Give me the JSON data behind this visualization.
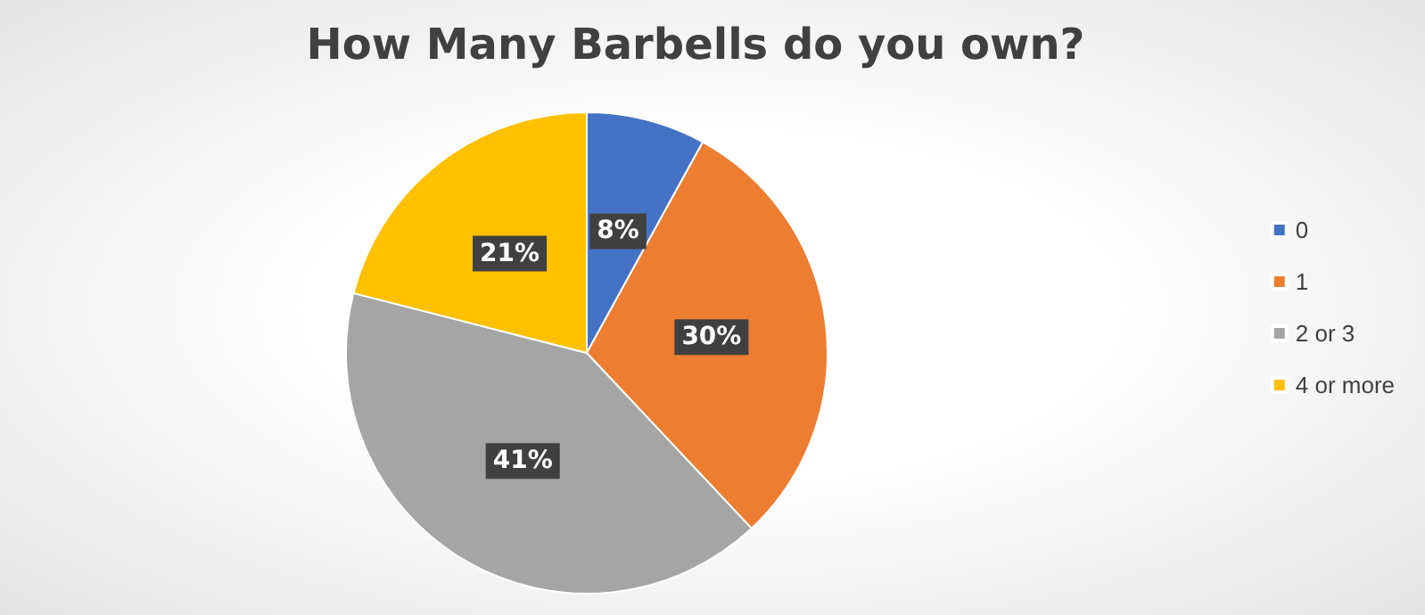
{
  "chart_data": {
    "type": "pie",
    "title": "How Many Barbells do you own?",
    "categories": [
      "0",
      "1",
      "2 or 3",
      "4 or more"
    ],
    "values": [
      8,
      30,
      41,
      21
    ],
    "colors": [
      "#4472c4",
      "#ed7d31",
      "#a5a5a5",
      "#ffc000"
    ],
    "value_labels": [
      "8%",
      "30%",
      "41%",
      "21%"
    ],
    "legend": "right"
  }
}
